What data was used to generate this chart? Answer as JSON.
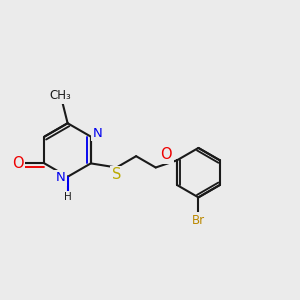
{
  "background_color": "#ebebeb",
  "bond_color": "#1a1a1a",
  "atom_colors": {
    "N": "#0000ee",
    "O": "#ee0000",
    "S": "#bbaa00",
    "Br": "#bb8800",
    "C": "#1a1a1a"
  },
  "lw": 1.5,
  "fs": 8.5,
  "xlim": [
    0,
    5.8
  ],
  "ylim": [
    0.2,
    3.6
  ]
}
